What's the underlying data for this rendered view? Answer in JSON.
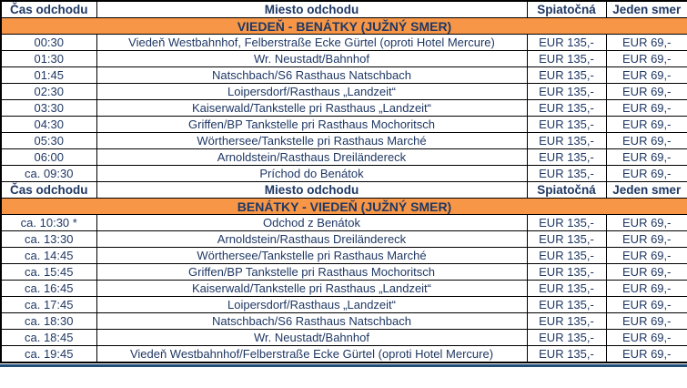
{
  "columns": [
    "Čas odchodu",
    "Miesto odchodu",
    "Spiatočná",
    "Jeden smer"
  ],
  "sections": [
    {
      "title": "VIEDEŇ - BENÁTKY (JUŽNÝ SMER)",
      "rows": [
        {
          "time": "00:30",
          "place": "Viedeň Westbahnhof, Felberstraße Ecke Gürtel (oproti Hotel Mercure)",
          "return": "EUR 135,-",
          "one_way": "EUR 69,-"
        },
        {
          "time": "01:30",
          "place": "Wr. Neustadt/Bahnhof",
          "return": "EUR 135,-",
          "one_way": "EUR 69,-"
        },
        {
          "time": "01:45",
          "place": "Natschbach/S6 Rasthaus Natschbach",
          "return": "EUR 135,-",
          "one_way": "EUR 69,-"
        },
        {
          "time": "02:30",
          "place": "Loipersdorf/Rasthaus „Landzeit“",
          "return": "EUR 135,-",
          "one_way": "EUR 69,-"
        },
        {
          "time": "03:30",
          "place": "Kaiserwald/Tankstelle pri Rasthaus „Landzeit“",
          "return": "EUR 135,-",
          "one_way": "EUR 69,-"
        },
        {
          "time": "04:30",
          "place": "Griffen/BP Tankstelle pri Rasthaus Mochoritsch",
          "return": "EUR 135,-",
          "one_way": "EUR 69,-"
        },
        {
          "time": "05:30",
          "place": "Wörthersee/Tankstelle pri Rasthaus Marché",
          "return": "EUR 135,-",
          "one_way": "EUR 69,-"
        },
        {
          "time": "06:00",
          "place": "Arnoldstein/Rasthaus Dreiländereck",
          "return": "EUR 135,-",
          "one_way": "EUR 69,-"
        },
        {
          "time": "ca. 09:30",
          "place": "Príchod do Benátok",
          "return": "EUR 135,-",
          "one_way": "EUR 69,-"
        }
      ]
    },
    {
      "title": "BENÁTKY - VIEDEŇ (JUŽNÝ SMER)",
      "rows": [
        {
          "time": "ca. 10:30 *",
          "place": "Odchod z Benátok",
          "return": "EUR 135,-",
          "one_way": "EUR 69,-"
        },
        {
          "time": "ca. 13:30",
          "place": "Arnoldstein/Rasthaus Dreiländereck",
          "return": "EUR 135,-",
          "one_way": "EUR 69,-"
        },
        {
          "time": "ca. 14:45",
          "place": "Wörthersee/Tankstelle pri Rasthaus Marché",
          "return": "EUR 135,-",
          "one_way": "EUR 69,-"
        },
        {
          "time": "ca. 15:45",
          "place": "Griffen/BP Tankstelle pri Rasthaus Mochoritsch",
          "return": "EUR 135,-",
          "one_way": "EUR 69,-"
        },
        {
          "time": "ca. 16:45",
          "place": "Kaiserwald/Tankstelle pri Rasthaus „Landzeit“",
          "return": "EUR 135,-",
          "one_way": "EUR 69,-"
        },
        {
          "time": "ca. 17:45",
          "place": "Loipersdorf/Rasthaus „Landzeit“",
          "return": "EUR 135,-",
          "one_way": "EUR 69,-"
        },
        {
          "time": "ca. 18:30",
          "place": "Natschbach/S6 Rasthaus Natschbach",
          "return": "EUR 135,-",
          "one_way": "EUR 69,-"
        },
        {
          "time": "ca. 18:45",
          "place": "Wr. Neustadt/Bahnhof",
          "return": "EUR 135,-",
          "one_way": "EUR 69,-"
        },
        {
          "time": "ca. 19:45",
          "place": "Viedeň Westbahnhof/Felberstraße Ecke Gürtel (oproti Hotel Mercure)",
          "return": "EUR 135,-",
          "one_way": "EUR 69,-"
        }
      ]
    }
  ],
  "colors": {
    "section_bg": "#F79646",
    "text": "#1F3864",
    "cell_border": "#000000",
    "bottom_rule": "#1F4E79"
  }
}
